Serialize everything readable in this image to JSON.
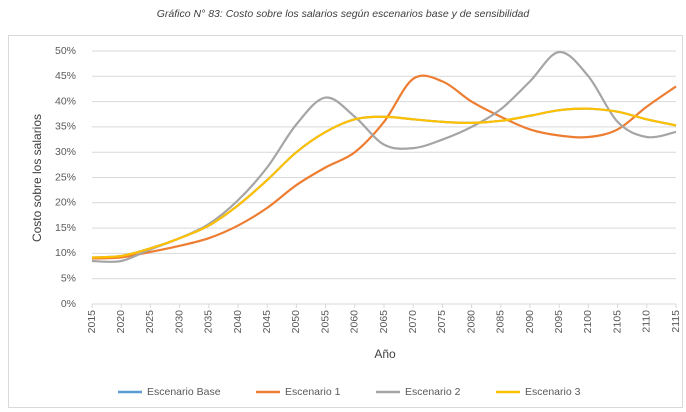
{
  "chart_data": {
    "type": "line",
    "title": "Gráfico N° 83: Costo sobre los salarios según escenarios base y de sensibilidad",
    "xlabel": "Año",
    "ylabel": "Costo sobre los salarios",
    "x": [
      2015,
      2020,
      2025,
      2030,
      2035,
      2040,
      2045,
      2050,
      2055,
      2060,
      2065,
      2070,
      2075,
      2080,
      2085,
      2090,
      2095,
      2100,
      2105,
      2110,
      2115
    ],
    "series": [
      {
        "name": "Escenario Base",
        "color": "#5b9bd5",
        "values": [
          9.2,
          9.5,
          11,
          13,
          15.5,
          19.5,
          24.5,
          30,
          34,
          36.5,
          37,
          36.5,
          36,
          35.8,
          36.2,
          37.2,
          38.3,
          38.6,
          38,
          36.5,
          35.3
        ]
      },
      {
        "name": "Escenario 1",
        "color": "#ed7d31",
        "values": [
          9,
          9.2,
          10.3,
          11.5,
          13,
          15.5,
          19,
          23.5,
          27,
          30,
          36,
          44.5,
          44,
          40,
          37,
          34.5,
          33.3,
          33,
          34.5,
          39,
          43
        ]
      },
      {
        "name": "Escenario 2",
        "color": "#a5a5a5",
        "values": [
          8.5,
          8.5,
          10.8,
          13,
          15.8,
          20.5,
          27,
          35.5,
          40.8,
          37,
          31.5,
          30.8,
          32.5,
          35,
          38.5,
          44,
          49.8,
          45,
          36,
          33,
          34
        ]
      },
      {
        "name": "Escenario 3",
        "color": "#ffc000",
        "values": [
          9.2,
          9.5,
          11,
          13,
          15.5,
          19.5,
          24.5,
          30,
          34,
          36.5,
          37,
          36.5,
          36,
          35.8,
          36.2,
          37.2,
          38.3,
          38.6,
          38,
          36.5,
          35.3
        ]
      }
    ],
    "xlim": [
      2015,
      2115
    ],
    "xticks": [
      2015,
      2020,
      2025,
      2030,
      2035,
      2040,
      2045,
      2050,
      2055,
      2060,
      2065,
      2070,
      2075,
      2080,
      2085,
      2090,
      2095,
      2100,
      2105,
      2110,
      2115
    ],
    "ylim": [
      0,
      50
    ],
    "yticks": [
      {
        "value": 0,
        "label": "0%"
      },
      {
        "value": 5,
        "label": "5%"
      },
      {
        "value": 10,
        "label": "10%"
      },
      {
        "value": 15,
        "label": "15%"
      },
      {
        "value": 20,
        "label": "20%"
      },
      {
        "value": 25,
        "label": "25%"
      },
      {
        "value": 30,
        "label": "30%"
      },
      {
        "value": 35,
        "label": "35%"
      },
      {
        "value": 40,
        "label": "40%"
      },
      {
        "value": 45,
        "label": "45%"
      },
      {
        "value": 50,
        "label": "50%"
      }
    ],
    "grid": true,
    "legend": "bottom"
  }
}
